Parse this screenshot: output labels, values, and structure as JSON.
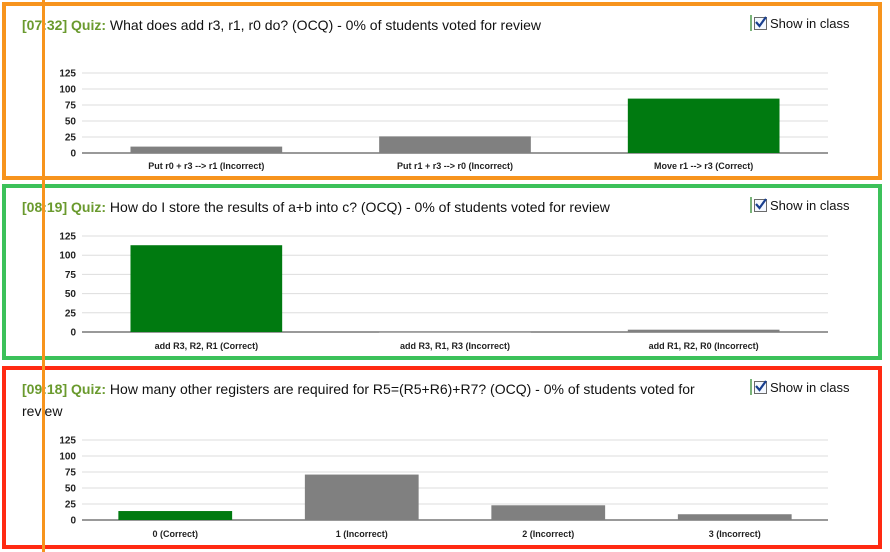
{
  "show_label": "Show in class",
  "quiz_label": "Quiz:",
  "colors": {
    "correct": "#007a10",
    "incorrect": "#808080"
  },
  "questions": [
    {
      "time": "[07:32]",
      "text": "What does add r3, r1, r0 do? (OCQ) - 0% of students voted for review",
      "border_color": "#f7941d",
      "chart_data": {
        "type": "bar",
        "yticks": [
          "0",
          "25",
          "50",
          "75",
          "100",
          "125"
        ],
        "ylim": [
          0,
          125
        ],
        "categories": [
          "Put r0 + r3 --> r1 (Incorrect)",
          "Put r1 + r3 --> r0 (Incorrect)",
          "Move r1 --> r3 (Correct)"
        ],
        "values": [
          10,
          26,
          85
        ],
        "correct": [
          false,
          false,
          true
        ]
      }
    },
    {
      "time": "[08:19]",
      "text": "How do I store the results of a+b into c? (OCQ) - 0% of students voted for review",
      "border_color": "#3cc15a",
      "chart_data": {
        "type": "bar",
        "yticks": [
          "0",
          "25",
          "50",
          "75",
          "100",
          "125"
        ],
        "ylim": [
          0,
          125
        ],
        "categories": [
          "add R3, R2, R1 (Correct)",
          "add R3, R1, R3 (Incorrect)",
          "add R1, R2, R0 (Incorrect)"
        ],
        "values": [
          113,
          1,
          3
        ],
        "correct": [
          true,
          false,
          false
        ]
      }
    },
    {
      "time": "[09:18]",
      "text": "How many other registers are required for R5=(R5+R6)+R7? (OCQ) - 0% of students voted for review",
      "border_color": "#ff2a12",
      "chart_data": {
        "type": "bar",
        "yticks": [
          "0",
          "25",
          "50",
          "75",
          "100",
          "125"
        ],
        "ylim": [
          0,
          125
        ],
        "categories": [
          "0 (Correct)",
          "1 (Incorrect)",
          "2 (Incorrect)",
          "3 (Incorrect)"
        ],
        "values": [
          14,
          71,
          23,
          9
        ],
        "correct": [
          true,
          false,
          false,
          false
        ]
      }
    }
  ]
}
